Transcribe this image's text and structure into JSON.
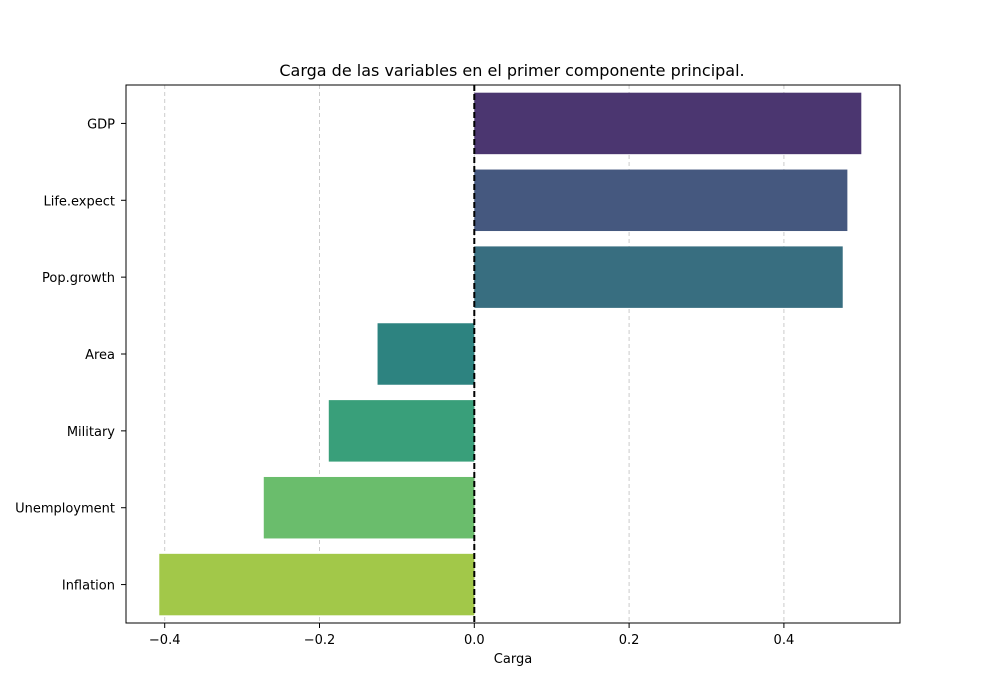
{
  "chart_data": {
    "type": "bar",
    "orientation": "horizontal",
    "title": "Carga de las variables en el primer componente principal.",
    "xlabel": "Carga",
    "ylabel": "",
    "categories": [
      "GDP",
      "Life.expect",
      "Pop.growth",
      "Area",
      "Military",
      "Unemployment",
      "Inflation"
    ],
    "values": [
      0.5,
      0.482,
      0.476,
      -0.125,
      -0.188,
      -0.272,
      -0.407
    ],
    "colors": [
      "#4b3670",
      "#45587f",
      "#386e80",
      "#2d8380",
      "#399f7a",
      "#6abd6c",
      "#a2c849"
    ],
    "xlim": [
      -0.45,
      0.55
    ],
    "xticks": [
      -0.4,
      -0.2,
      0.0,
      0.2,
      0.4
    ],
    "xtick_labels": [
      "−0.4",
      "−0.2",
      "0.0",
      "0.2",
      "0.4"
    ],
    "grid": "x-dashed",
    "reference_line": 0.0
  }
}
